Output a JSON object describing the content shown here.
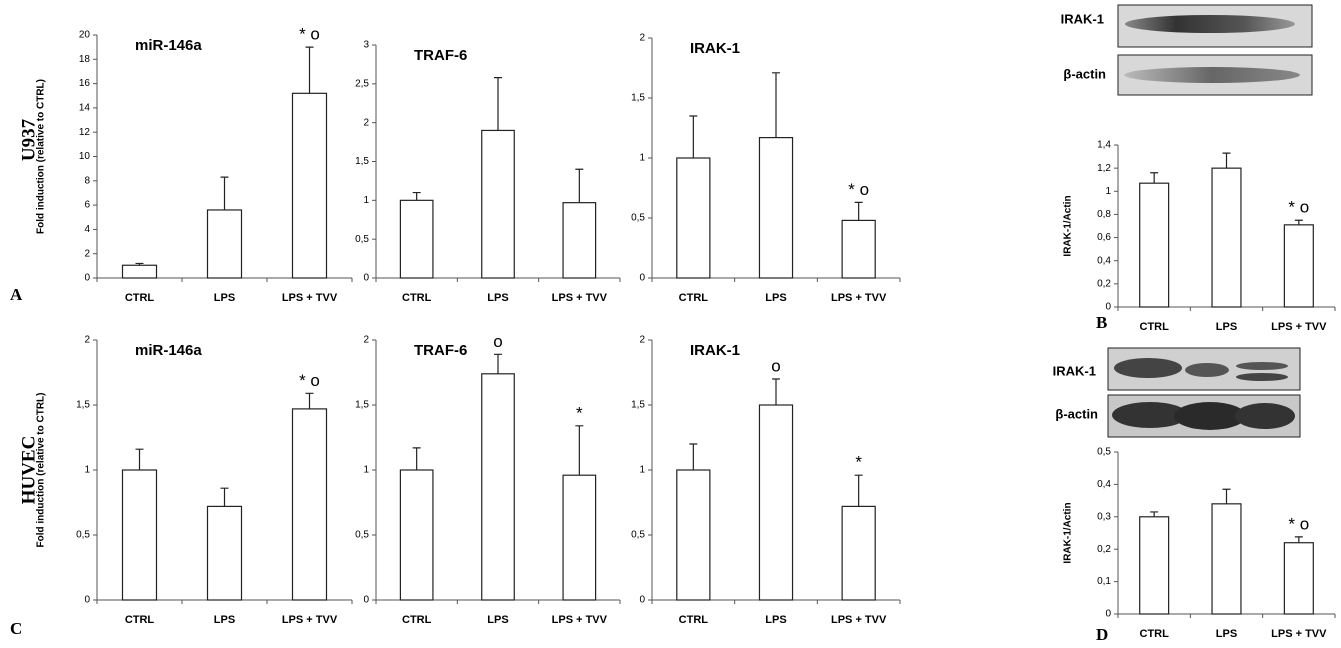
{
  "row_labels": [
    "U937",
    "HUVEC"
  ],
  "panel_letters": [
    "A",
    "B",
    "C",
    "D"
  ],
  "blots": [
    {
      "labels": [
        "IRAK-1",
        "β-actin"
      ]
    },
    {
      "labels": [
        "IRAK-1",
        "β-actin"
      ]
    }
  ],
  "chart_data": [
    {
      "type": "bar",
      "title": "miR-146a",
      "y_label": "Fold induction (relative to CTRL)",
      "categories": [
        "CTRL",
        "LPS",
        "LPS + TVV"
      ],
      "values": [
        1.05,
        5.6,
        15.2
      ],
      "errors": [
        0.15,
        2.7,
        3.8
      ],
      "bar_annotations": [
        null,
        null,
        "* o"
      ],
      "color": "#ffffff",
      "ylim": [
        0,
        20
      ],
      "yticks": [
        0,
        2,
        4,
        6,
        8,
        10,
        12,
        14,
        16,
        18,
        20
      ]
    },
    {
      "type": "bar",
      "title": "TRAF-6",
      "categories": [
        "CTRL",
        "LPS",
        "LPS + TVV"
      ],
      "values": [
        1.0,
        1.9,
        0.97
      ],
      "errors": [
        0.1,
        0.68,
        0.43
      ],
      "bar_annotations": [
        null,
        null,
        null
      ],
      "color": "#ffffff",
      "ylim": [
        0,
        3
      ],
      "yticks": [
        0,
        {
          "value": 0.5,
          "label": "0,5"
        },
        1,
        {
          "value": 1.5,
          "label": "1,5"
        },
        2,
        {
          "value": 2.5,
          "label": "2,5"
        },
        3
      ]
    },
    {
      "type": "bar",
      "title": "IRAK-1",
      "categories": [
        "CTRL",
        "LPS",
        "LPS + TVV"
      ],
      "values": [
        1.0,
        1.17,
        0.48
      ],
      "errors": [
        0.35,
        0.54,
        0.15
      ],
      "bar_annotations": [
        null,
        null,
        "* o"
      ],
      "color": "#ffffff",
      "ylim": [
        0,
        2
      ],
      "yticks": [
        0,
        {
          "value": 0.5,
          "label": "0,5"
        },
        1,
        {
          "value": 1.5,
          "label": "1,5"
        },
        2
      ]
    },
    {
      "type": "bar",
      "y_label": "IRAK-1/Actin",
      "categories": [
        "CTRL",
        "LPS",
        "LPS + TVV"
      ],
      "values": [
        1.07,
        1.2,
        0.71
      ],
      "errors": [
        0.09,
        0.13,
        0.04
      ],
      "bar_annotations": [
        null,
        null,
        "* o"
      ],
      "color": "#ffffff",
      "ylim": [
        0,
        1.4
      ],
      "yticks": [
        0,
        {
          "value": 0.2,
          "label": "0,2"
        },
        {
          "value": 0.4,
          "label": "0,4"
        },
        {
          "value": 0.6,
          "label": "0,6"
        },
        {
          "value": 0.8,
          "label": "0,8"
        },
        1,
        {
          "value": 1.2,
          "label": "1,2"
        },
        {
          "value": 1.4,
          "label": "1,4"
        }
      ]
    },
    {
      "type": "bar",
      "title": "miR-146a",
      "y_label": "Fold induction (relative to CTRL)",
      "categories": [
        "CTRL",
        "LPS",
        "LPS + TVV"
      ],
      "values": [
        1.0,
        0.72,
        1.47
      ],
      "errors": [
        0.16,
        0.14,
        0.12
      ],
      "bar_annotations": [
        null,
        null,
        "* o"
      ],
      "color": "#ffffff",
      "ylim": [
        0,
        2
      ],
      "yticks": [
        0,
        {
          "value": 0.5,
          "label": "0,5"
        },
        1,
        {
          "value": 1.5,
          "label": "1,5"
        },
        2
      ]
    },
    {
      "type": "bar",
      "title": "TRAF-6",
      "categories": [
        "CTRL",
        "LPS",
        "LPS + TVV"
      ],
      "values": [
        1.0,
        1.74,
        0.96
      ],
      "errors": [
        0.17,
        0.15,
        0.38
      ],
      "bar_annotations": [
        null,
        "o",
        "*"
      ],
      "color": "#ffffff",
      "ylim": [
        0,
        2
      ],
      "yticks": [
        0,
        {
          "value": 0.5,
          "label": "0,5"
        },
        1,
        {
          "value": 1.5,
          "label": "1,5"
        },
        2
      ]
    },
    {
      "type": "bar",
      "title": "IRAK-1",
      "categories": [
        "CTRL",
        "LPS",
        "LPS + TVV"
      ],
      "values": [
        1.0,
        1.5,
        0.72
      ],
      "errors": [
        0.2,
        0.2,
        0.24
      ],
      "bar_annotations": [
        null,
        "o",
        "*"
      ],
      "color": "#ffffff",
      "ylim": [
        0,
        2
      ],
      "yticks": [
        0,
        {
          "value": 0.5,
          "label": "0,5"
        },
        1,
        {
          "value": 1.5,
          "label": "1,5"
        },
        2
      ]
    },
    {
      "type": "bar",
      "y_label": "IRAK-1/Actin",
      "categories": [
        "CTRL",
        "LPS",
        "LPS + TVV"
      ],
      "values": [
        0.3,
        0.34,
        0.22
      ],
      "errors": [
        0.015,
        0.045,
        0.018
      ],
      "bar_annotations": [
        null,
        null,
        "* o"
      ],
      "color": "#ffffff",
      "ylim": [
        0,
        0.5
      ],
      "yticks": [
        0,
        {
          "value": 0.1,
          "label": "0,1"
        },
        {
          "value": 0.2,
          "label": "0,2"
        },
        {
          "value": 0.3,
          "label": "0,3"
        },
        {
          "value": 0.4,
          "label": "0,4"
        },
        {
          "value": 0.5,
          "label": "0,5"
        }
      ]
    }
  ]
}
